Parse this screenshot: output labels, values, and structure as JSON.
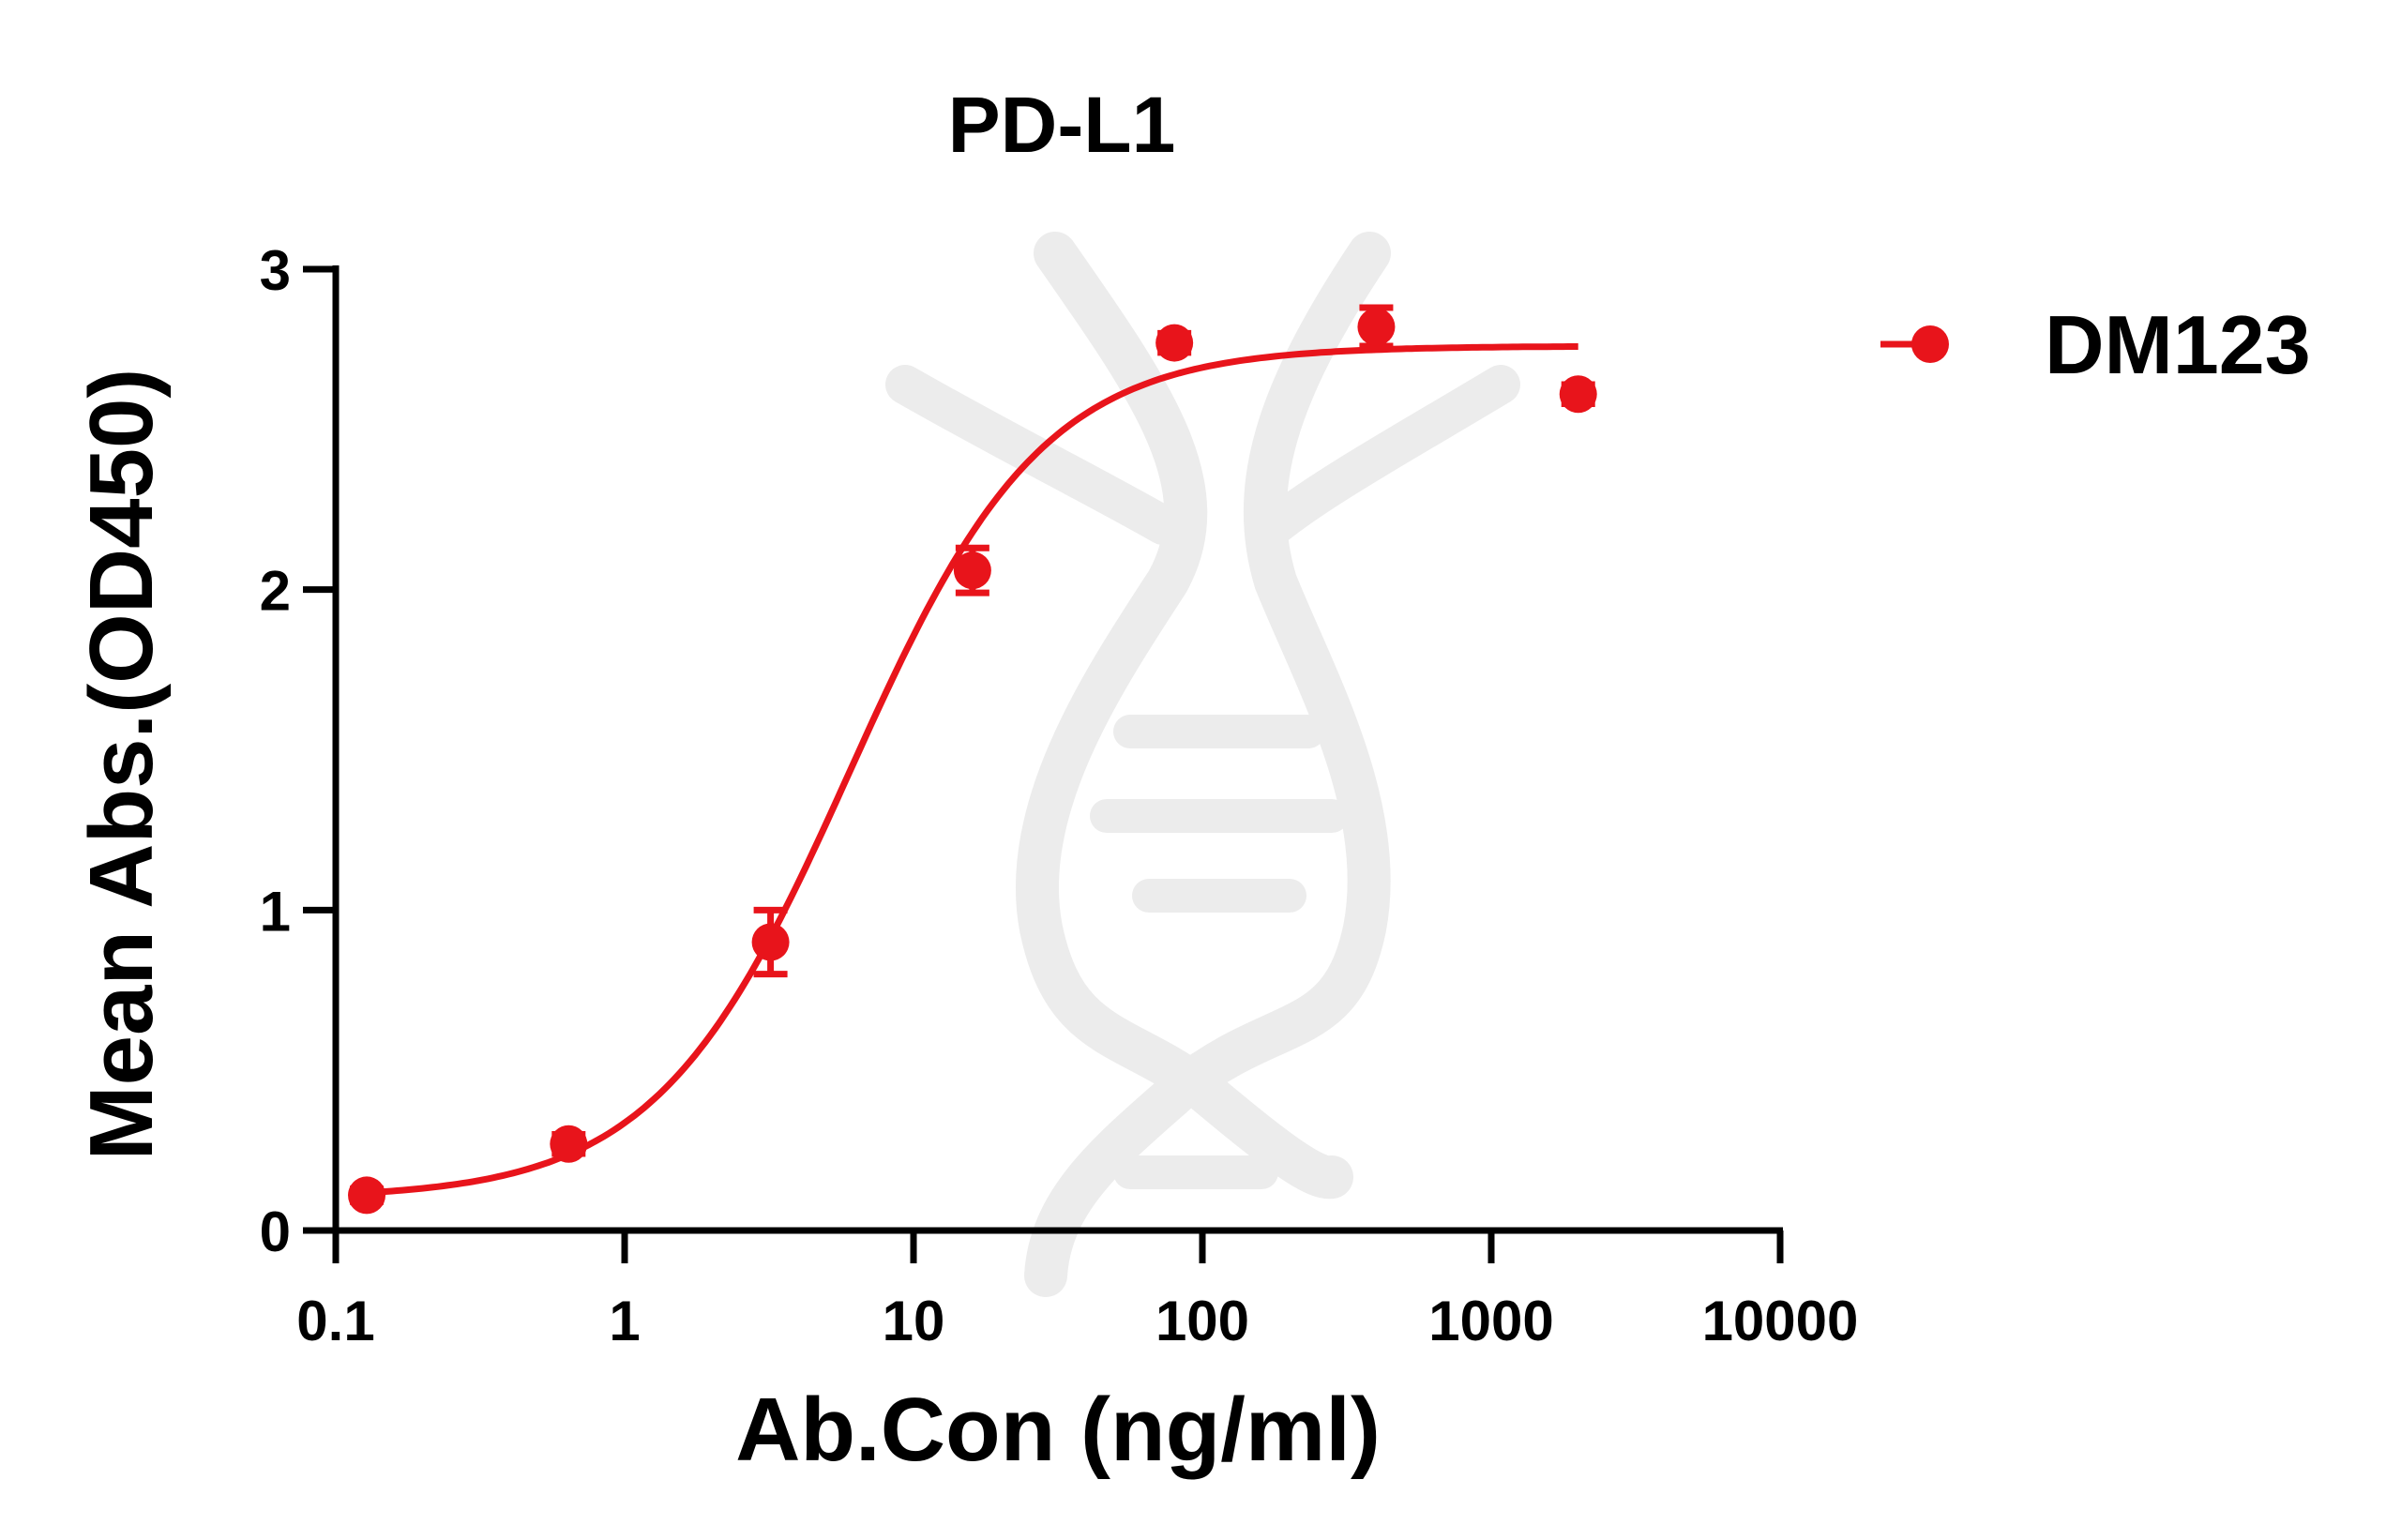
{
  "chart_data": {
    "type": "scatter",
    "title": "PD-L1",
    "xlabel": "Ab.Con (ng/ml)",
    "ylabel": "Mean Abs.(OD450)",
    "xscale": "log",
    "xlim": [
      0.1,
      10000
    ],
    "ylim": [
      0,
      3
    ],
    "x_ticks": [
      0.1,
      1,
      10,
      100,
      1000,
      10000
    ],
    "x_tick_labels": [
      "0.1",
      "1",
      "10",
      "100",
      "1000",
      "10000"
    ],
    "y_ticks": [
      0,
      1,
      2,
      3
    ],
    "y_tick_labels": [
      "0",
      "1",
      "2",
      "3"
    ],
    "grid": false,
    "legend_position": "top-right",
    "colors": {
      "series": "#e8141b",
      "axis": "#000000",
      "watermark": "#ececec"
    },
    "watermark_icon": "dna-helix-icon",
    "series": [
      {
        "name": "DM123",
        "x": [
          0.128,
          0.64,
          3.2,
          16,
          80,
          400,
          2000
        ],
        "y": [
          0.11,
          0.27,
          0.9,
          2.06,
          2.77,
          2.82,
          2.61
        ],
        "error": [
          0.02,
          0.03,
          0.1,
          0.07,
          0.03,
          0.06,
          0.03
        ],
        "fit": "4PL",
        "fit_params": {
          "bottom": 0.1,
          "top": 2.76,
          "ec50": 6.0,
          "hill": 1.3
        }
      }
    ]
  }
}
